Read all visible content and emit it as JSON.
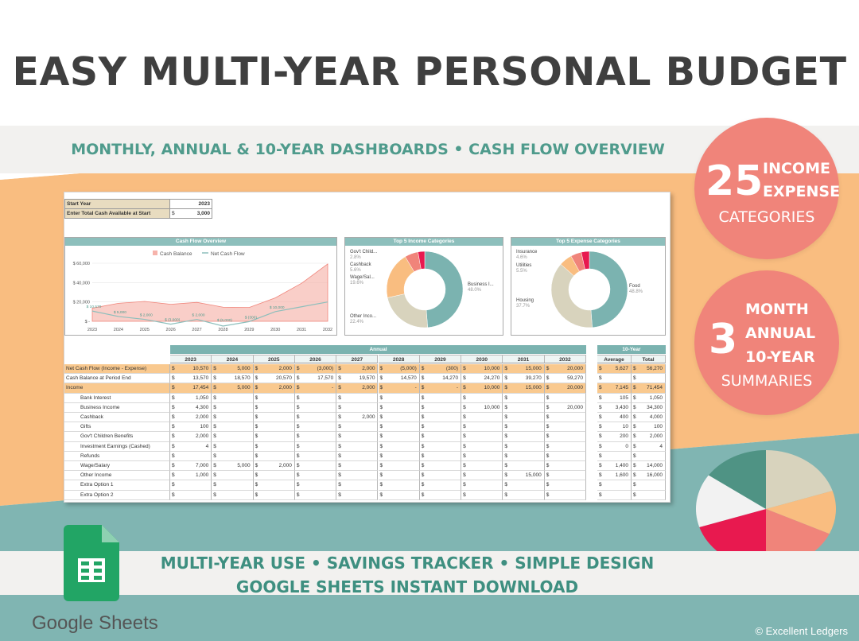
{
  "title": "EASY MULTI-YEAR PERSONAL BUDGET",
  "subtitle": "MONTHLY, ANNUAL & 10-YEAR DASHBOARDS  •  CASH FLOW OVERVIEW",
  "badge_top": {
    "number": "25",
    "line1": "INCOME",
    "line2": "EXPENSE",
    "line3": "CATEGORIES"
  },
  "badge_mid": {
    "number": "3",
    "line1": "MONTH",
    "line2": "ANNUAL",
    "line3": "10-YEAR",
    "line4": "SUMMARIES"
  },
  "tagline1": "MULTI-YEAR USE  •  SAVINGS TRACKER  •  SIMPLE DESIGN",
  "tagline2": "GOOGLE SHEETS INSTANT DOWNLOAD",
  "logo_text": "Google Sheets",
  "copyright": "© Excellent Ledgers",
  "colors": {
    "teal": "#7bb3b0",
    "coral": "#f0847a",
    "orange": "#f9bd80",
    "magenta": "#e8194f",
    "beige": "#d8d3bd",
    "dark_teal": "#4f9384"
  },
  "sheet": {
    "start_year_label": "Start Year",
    "start_year_value": "2023",
    "cash_label": "Enter Total Cash Available at Start",
    "cash_currency": "$",
    "cash_value": "3,000",
    "section_annual": "Annual",
    "section_10yr": "10-Year",
    "years": [
      "2023",
      "2024",
      "2025",
      "2026",
      "2027",
      "2028",
      "2029",
      "2030",
      "2031",
      "2032"
    ],
    "col_average": "Average",
    "col_total": "Total",
    "currency": "$",
    "rows": [
      {
        "label": "Net Cash Flow (Income - Expense)",
        "kind": "highlight",
        "values": [
          "10,570",
          "5,000",
          "2,000",
          "(3,000)",
          "2,000",
          "(5,000)",
          "(300)",
          "10,000",
          "15,000",
          "20,000"
        ],
        "avg": "5,627",
        "total": "56,270"
      },
      {
        "label": "Cash Balance at Period End",
        "kind": "plain",
        "values": [
          "13,570",
          "18,570",
          "20,570",
          "17,570",
          "19,570",
          "14,570",
          "14,270",
          "24,270",
          "39,270",
          "59,270"
        ],
        "avg": "",
        "total": ""
      },
      {
        "label": "Income",
        "kind": "income",
        "values": [
          "17,454",
          "5,000",
          "2,000",
          "-",
          "2,000",
          "-",
          "-",
          "10,000",
          "15,000",
          "20,000"
        ],
        "avg": "7,145",
        "total": "71,454"
      },
      {
        "label": "Bank Interest",
        "kind": "sub",
        "values": [
          "1,050",
          "",
          "",
          "",
          "",
          "",
          "",
          "",
          "",
          ""
        ],
        "avg": "105",
        "total": "1,050"
      },
      {
        "label": "Business Income",
        "kind": "sub",
        "values": [
          "4,300",
          "",
          "",
          "",
          "",
          "",
          "",
          "10,000",
          "",
          "20,000"
        ],
        "avg": "3,430",
        "total": "34,300"
      },
      {
        "label": "Cashback",
        "kind": "sub",
        "values": [
          "2,000",
          "",
          "",
          "",
          "2,000",
          "",
          "",
          "",
          "",
          ""
        ],
        "avg": "400",
        "total": "4,000"
      },
      {
        "label": "Gifts",
        "kind": "sub",
        "values": [
          "100",
          "",
          "",
          "",
          "",
          "",
          "",
          "",
          "",
          ""
        ],
        "avg": "10",
        "total": "100"
      },
      {
        "label": "Gov't Children Benefits",
        "kind": "sub",
        "values": [
          "2,000",
          "",
          "",
          "",
          "",
          "",
          "",
          "",
          "",
          ""
        ],
        "avg": "200",
        "total": "2,000"
      },
      {
        "label": "Investment Earnings (Cashed)",
        "kind": "sub",
        "values": [
          "4",
          "",
          "",
          "",
          "",
          "",
          "",
          "",
          "",
          ""
        ],
        "avg": "0",
        "total": "4"
      },
      {
        "label": "Refunds",
        "kind": "sub",
        "values": [
          "",
          "",
          "",
          "",
          "",
          "",
          "",
          "",
          "",
          ""
        ],
        "avg": "",
        "total": ""
      },
      {
        "label": "Wage/Salary",
        "kind": "sub",
        "values": [
          "7,000",
          "5,000",
          "2,000",
          "",
          "",
          "",
          "",
          "",
          "",
          ""
        ],
        "avg": "1,400",
        "total": "14,000"
      },
      {
        "label": "Other Income",
        "kind": "sub",
        "values": [
          "1,000",
          "",
          "",
          "",
          "",
          "",
          "",
          "",
          "15,000",
          ""
        ],
        "avg": "1,600",
        "total": "16,000"
      },
      {
        "label": "Extra Option 1",
        "kind": "sub",
        "values": [
          "",
          "",
          "",
          "",
          "",
          "",
          "",
          "",
          "",
          ""
        ],
        "avg": "",
        "total": ""
      },
      {
        "label": "Extra Option 2",
        "kind": "sub",
        "values": [
          "",
          "",
          "",
          "",
          "",
          "",
          "",
          "",
          "",
          ""
        ],
        "avg": "",
        "total": ""
      }
    ]
  },
  "chart_data": [
    {
      "type": "area",
      "title": "Cash Flow Overview",
      "categories": [
        "2023",
        "2024",
        "2025",
        "2026",
        "2027",
        "2028",
        "2029",
        "2030",
        "2031",
        "2032"
      ],
      "series": [
        {
          "name": "Cash Balance",
          "values": [
            13570,
            18570,
            20570,
            17570,
            19570,
            14570,
            14270,
            24270,
            39270,
            59270
          ],
          "color": "#f6b3ab"
        },
        {
          "name": "Net Cash Flow",
          "values": [
            10570,
            5000,
            2000,
            -3000,
            2000,
            -5000,
            -300,
            10000,
            15000,
            20000
          ],
          "color": "#8dbfbc"
        }
      ],
      "data_labels": [
        "$ 10,570",
        "$ 5,000",
        "$ 2,000",
        "$ (3,000)",
        "$ 2,000",
        "$ (5,000)",
        "$ (300)",
        "$ 10,000"
      ],
      "y_ticks": [
        "$ 60,000",
        "$ 40,000",
        "$ 20,000",
        "$ -"
      ],
      "ylim": [
        0,
        60000
      ],
      "legend": "top"
    },
    {
      "type": "pie",
      "title": "Top 5 Income Categories",
      "slices": [
        {
          "label": "Business I...",
          "value": 48.0,
          "pct": "48.0%",
          "color": "#7bb3b0"
        },
        {
          "label": "Other Inco...",
          "value": 22.4,
          "pct": "22.4%",
          "color": "#d8d3bd"
        },
        {
          "label": "Wage/Sal...",
          "value": 19.6,
          "pct": "19.6%",
          "color": "#f9bd80"
        },
        {
          "label": "Cashback",
          "value": 5.6,
          "pct": "5.6%",
          "color": "#f0847a"
        },
        {
          "label": "Gov't Child...",
          "value": 2.8,
          "pct": "2.8%",
          "color": "#e8194f"
        }
      ]
    },
    {
      "type": "pie",
      "title": "Top 5 Expense Categories",
      "slices": [
        {
          "label": "Food",
          "value": 48.8,
          "pct": "48.8%",
          "color": "#7bb3b0"
        },
        {
          "label": "Housing",
          "value": 37.7,
          "pct": "37.7%",
          "color": "#d8d3bd"
        },
        {
          "label": "Utilities",
          "value": 5.5,
          "pct": "5.5%",
          "color": "#f9bd80"
        },
        {
          "label": "Insurance",
          "value": 4.6,
          "pct": "4.6%",
          "color": "#f0847a"
        },
        {
          "label": "",
          "value": 3.4,
          "pct": "",
          "color": "#e8194f"
        }
      ]
    }
  ]
}
